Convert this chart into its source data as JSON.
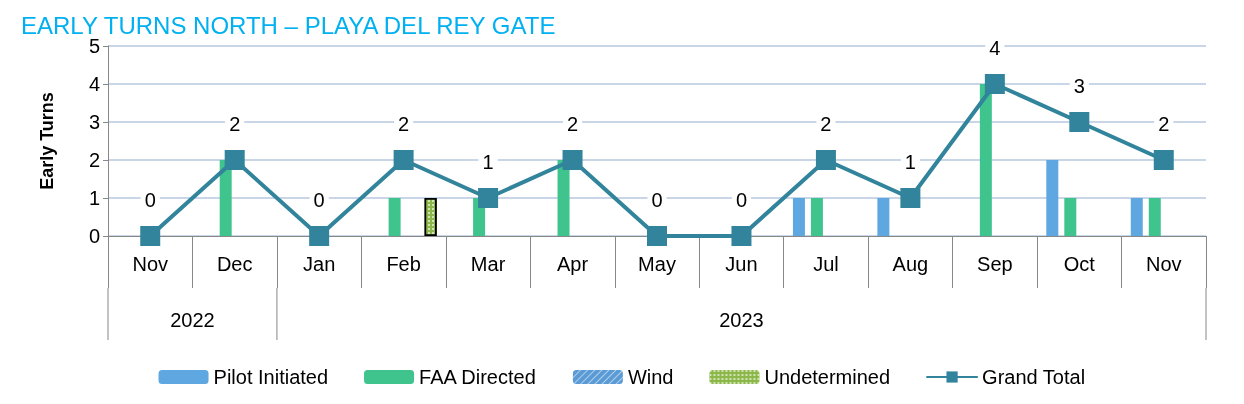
{
  "chart_data": {
    "type": "bar",
    "title": "EARLY TURNS NORTH – PLAYA DEL REY GATE",
    "ylabel": "Early Turns",
    "categories": [
      "Nov",
      "Dec",
      "Jan",
      "Feb",
      "Mar",
      "Apr",
      "May",
      "Jun",
      "Jul",
      "Aug",
      "Sep",
      "Oct",
      "Nov"
    ],
    "annotations": [
      "2022",
      "2023"
    ],
    "series": [
      {
        "name": "Pilot Initiated",
        "color": "#5ea7e0",
        "values": [
          0,
          0,
          0,
          0,
          0,
          0,
          0,
          0,
          1,
          1,
          0,
          2,
          1
        ]
      },
      {
        "name": "FAA Directed",
        "color": "#40c48e",
        "values": [
          0,
          2,
          0,
          1,
          1,
          2,
          0,
          0,
          1,
          0,
          4,
          1,
          1
        ]
      },
      {
        "name": "Wind",
        "color": "#5b9bd5",
        "values": [
          0,
          0,
          0,
          0,
          0,
          0,
          0,
          0,
          0,
          0,
          0,
          0,
          0
        ]
      },
      {
        "name": "Undetermined",
        "color": "#8cb84a",
        "values": [
          0,
          0,
          0,
          1,
          0,
          0,
          0,
          0,
          0,
          0,
          0,
          0,
          0
        ]
      },
      {
        "name": "Grand Total",
        "type": "line",
        "color": "#31849b",
        "marker": "square",
        "values": [
          0,
          2,
          0,
          2,
          1,
          2,
          0,
          0,
          2,
          1,
          4,
          3,
          2
        ],
        "value_labels": [
          "0",
          "2",
          "0",
          "2",
          "1",
          "2",
          "0",
          "0",
          "2",
          "1",
          "4",
          "3",
          "2"
        ]
      }
    ],
    "ylim": [
      0,
      5
    ],
    "yticks": [
      0,
      1,
      2,
      3,
      4,
      5
    ],
    "grid": "y",
    "legend": "bottom"
  }
}
